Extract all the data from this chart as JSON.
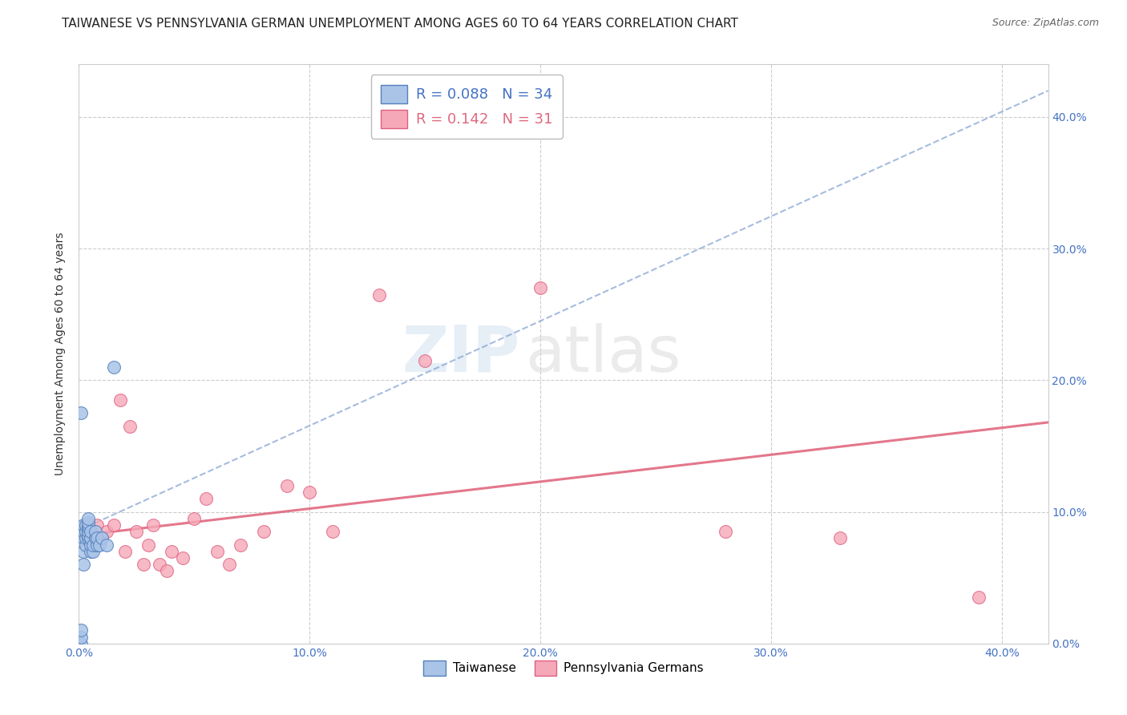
{
  "title": "TAIWANESE VS PENNSYLVANIA GERMAN UNEMPLOYMENT AMONG AGES 60 TO 64 YEARS CORRELATION CHART",
  "source": "Source: ZipAtlas.com",
  "tick_color": "#4472c4",
  "ylabel": "Unemployment Among Ages 60 to 64 years",
  "xlim": [
    0.0,
    0.42
  ],
  "ylim": [
    0.0,
    0.44
  ],
  "xticks": [
    0.0,
    0.1,
    0.2,
    0.3,
    0.4
  ],
  "yticks": [
    0.0,
    0.1,
    0.2,
    0.3,
    0.4
  ],
  "tick_labels": [
    "0.0%",
    "10.0%",
    "20.0%",
    "30.0%",
    "40.0%"
  ],
  "grid_color": "#cccccc",
  "background_color": "#ffffff",
  "taiwanese_color": "#aac4e8",
  "taiwanese_edge_color": "#5580bb",
  "pennsylvania_color": "#f5a8b8",
  "pennsylvania_edge_color": "#e06080",
  "taiwan_line_color": "#7799cc",
  "pa_line_color": "#e06880",
  "legend_r_taiwanese": "0.088",
  "legend_n_taiwanese": "34",
  "legend_r_pennsylvania": "0.142",
  "legend_n_pennsylvania": "31",
  "taiwanese_x": [
    0.001,
    0.001,
    0.001,
    0.002,
    0.002,
    0.002,
    0.002,
    0.002,
    0.003,
    0.003,
    0.003,
    0.003,
    0.004,
    0.004,
    0.004,
    0.004,
    0.004,
    0.004,
    0.004,
    0.005,
    0.005,
    0.005,
    0.005,
    0.006,
    0.006,
    0.007,
    0.007,
    0.008,
    0.008,
    0.009,
    0.01,
    0.012,
    0.001,
    0.015
  ],
  "taiwanese_y": [
    0.0,
    0.005,
    0.01,
    0.06,
    0.07,
    0.08,
    0.085,
    0.09,
    0.075,
    0.08,
    0.085,
    0.09,
    0.08,
    0.082,
    0.085,
    0.088,
    0.09,
    0.092,
    0.095,
    0.07,
    0.075,
    0.08,
    0.085,
    0.07,
    0.075,
    0.08,
    0.085,
    0.075,
    0.08,
    0.075,
    0.08,
    0.075,
    0.175,
    0.21
  ],
  "pennsylvania_x": [
    0.005,
    0.008,
    0.01,
    0.012,
    0.015,
    0.018,
    0.02,
    0.022,
    0.025,
    0.028,
    0.03,
    0.032,
    0.035,
    0.038,
    0.04,
    0.045,
    0.05,
    0.055,
    0.06,
    0.065,
    0.07,
    0.08,
    0.09,
    0.1,
    0.11,
    0.13,
    0.15,
    0.2,
    0.28,
    0.33,
    0.39
  ],
  "pennsylvania_y": [
    0.085,
    0.09,
    0.08,
    0.085,
    0.09,
    0.185,
    0.07,
    0.165,
    0.085,
    0.06,
    0.075,
    0.09,
    0.06,
    0.055,
    0.07,
    0.065,
    0.095,
    0.11,
    0.07,
    0.06,
    0.075,
    0.085,
    0.12,
    0.115,
    0.085,
    0.265,
    0.215,
    0.27,
    0.085,
    0.08,
    0.035
  ],
  "taiwan_trend_x": [
    0.0,
    0.42
  ],
  "taiwan_trend_y": [
    0.086,
    0.42
  ],
  "pa_trend_x": [
    0.0,
    0.42
  ],
  "pa_trend_y": [
    0.082,
    0.168
  ],
  "watermark_zip": "ZIP",
  "watermark_atlas": "atlas",
  "title_fontsize": 11,
  "axis_label_fontsize": 10,
  "tick_fontsize": 10,
  "legend_fontsize": 13
}
